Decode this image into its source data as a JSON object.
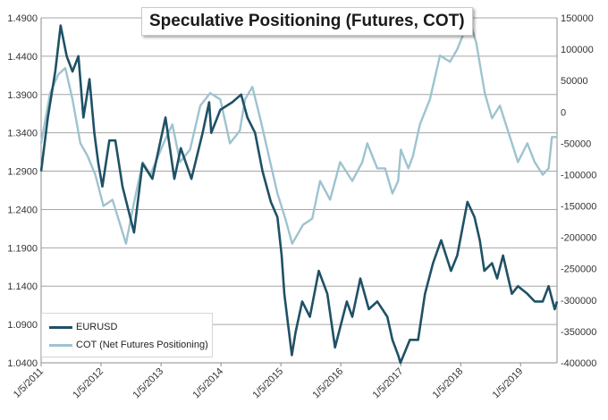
{
  "chart_data": {
    "type": "line",
    "title": "Speculative Positioning (Futures, COT)",
    "x_tick_labels": [
      "1/5/2011",
      "1/5/2012",
      "1/5/2013",
      "1/5/2014",
      "1/5/2015",
      "1/5/2016",
      "1/5/2017",
      "1/5/2018",
      "1/5/2019"
    ],
    "x_range": [
      "2011-01-05",
      "2019-08-15"
    ],
    "left_axis": {
      "ticks": [
        "1.4900",
        "1.4400",
        "1.3900",
        "1.3400",
        "1.2900",
        "1.2400",
        "1.1900",
        "1.1400",
        "1.0900",
        "1.0400"
      ],
      "ylim": [
        1.04,
        1.49
      ]
    },
    "right_axis": {
      "ticks": [
        "150000",
        "100000",
        "50000",
        "0",
        "-50000",
        "-100000",
        "-150000",
        "-200000",
        "-250000",
        "-300000",
        "-350000",
        "-400000"
      ],
      "ylim": [
        -400000,
        150000
      ]
    },
    "grid": "horizontal",
    "legend_position": "bottom-left",
    "colors": {
      "eurusd": "#1f5166",
      "cot": "#9ec3cf",
      "grid": "#a6a6a6"
    },
    "series": [
      {
        "name": "EURUSD",
        "axis": "left",
        "x": [
          "2011-01-05",
          "2011-02-15",
          "2011-04-01",
          "2011-05-04",
          "2011-06-10",
          "2011-07-15",
          "2011-08-20",
          "2011-09-20",
          "2011-10-27",
          "2011-11-25",
          "2011-12-20",
          "2012-01-13",
          "2012-02-25",
          "2012-04-01",
          "2012-05-15",
          "2012-07-24",
          "2012-09-14",
          "2012-11-13",
          "2013-02-01",
          "2013-03-27",
          "2013-05-05",
          "2013-07-09",
          "2013-09-15",
          "2013-10-25",
          "2013-11-07",
          "2014-01-01",
          "2014-03-15",
          "2014-05-08",
          "2014-06-15",
          "2014-08-01",
          "2014-09-15",
          "2014-11-05",
          "2014-12-15",
          "2015-01-10",
          "2015-01-26",
          "2015-03-13",
          "2015-04-05",
          "2015-05-15",
          "2015-07-01",
          "2015-08-24",
          "2015-10-15",
          "2015-12-01",
          "2016-02-11",
          "2016-03-15",
          "2016-05-03",
          "2016-06-24",
          "2016-08-15",
          "2016-10-15",
          "2016-11-15",
          "2016-12-20",
          "2017-01-03",
          "2017-03-01",
          "2017-04-20",
          "2017-06-01",
          "2017-07-20",
          "2017-09-08",
          "2017-11-07",
          "2017-12-15",
          "2018-02-15",
          "2018-03-30",
          "2018-05-01",
          "2018-05-29",
          "2018-07-15",
          "2018-08-15",
          "2018-09-20",
          "2018-11-13",
          "2018-12-20",
          "2019-02-15",
          "2019-04-01",
          "2019-05-20",
          "2019-06-25",
          "2019-08-01",
          "2019-08-15"
        ],
        "values": [
          1.29,
          1.36,
          1.42,
          1.48,
          1.44,
          1.42,
          1.44,
          1.36,
          1.41,
          1.34,
          1.3,
          1.27,
          1.33,
          1.33,
          1.27,
          1.21,
          1.3,
          1.28,
          1.36,
          1.28,
          1.32,
          1.28,
          1.34,
          1.38,
          1.34,
          1.37,
          1.38,
          1.39,
          1.36,
          1.34,
          1.29,
          1.25,
          1.23,
          1.18,
          1.13,
          1.05,
          1.08,
          1.12,
          1.1,
          1.16,
          1.13,
          1.06,
          1.12,
          1.1,
          1.15,
          1.11,
          1.12,
          1.1,
          1.07,
          1.05,
          1.04,
          1.07,
          1.07,
          1.13,
          1.17,
          1.2,
          1.16,
          1.18,
          1.25,
          1.23,
          1.2,
          1.16,
          1.17,
          1.15,
          1.18,
          1.13,
          1.14,
          1.13,
          1.12,
          1.12,
          1.14,
          1.11,
          1.12
        ]
      },
      {
        "name": "COT (Net Futures Positioning)",
        "axis": "right",
        "x": [
          "2011-01-05",
          "2011-03-01",
          "2011-04-20",
          "2011-06-01",
          "2011-07-15",
          "2011-09-01",
          "2011-10-15",
          "2011-12-01",
          "2012-01-20",
          "2012-03-15",
          "2012-05-01",
          "2012-06-05",
          "2012-07-20",
          "2012-09-15",
          "2012-11-01",
          "2013-01-20",
          "2013-03-15",
          "2013-05-01",
          "2013-07-01",
          "2013-09-01",
          "2013-10-31",
          "2014-01-01",
          "2014-03-01",
          "2014-04-30",
          "2014-06-01",
          "2014-07-15",
          "2014-09-01",
          "2014-11-01",
          "2014-12-15",
          "2015-02-01",
          "2015-03-15",
          "2015-05-20",
          "2015-07-15",
          "2015-09-01",
          "2015-11-01",
          "2016-01-01",
          "2016-03-15",
          "2016-05-15",
          "2016-06-15",
          "2016-08-15",
          "2016-10-01",
          "2016-11-15",
          "2016-12-20",
          "2017-01-05",
          "2017-02-20",
          "2017-03-20",
          "2017-05-01",
          "2017-07-01",
          "2017-09-01",
          "2017-11-01",
          "2017-12-15",
          "2018-01-30",
          "2018-03-01",
          "2018-04-10",
          "2018-06-01",
          "2018-07-15",
          "2018-09-01",
          "2018-11-01",
          "2018-12-20",
          "2019-02-15",
          "2019-04-01",
          "2019-05-20",
          "2019-06-25",
          "2019-07-15",
          "2019-08-15"
        ],
        "values": [
          -50000,
          30000,
          60000,
          70000,
          20000,
          -50000,
          -70000,
          -100000,
          -150000,
          -140000,
          -180000,
          -210000,
          -150000,
          -80000,
          -100000,
          -50000,
          -20000,
          -80000,
          -60000,
          10000,
          30000,
          20000,
          -50000,
          -30000,
          20000,
          40000,
          -10000,
          -80000,
          -130000,
          -170000,
          -210000,
          -180000,
          -170000,
          -110000,
          -140000,
          -80000,
          -110000,
          -80000,
          -50000,
          -90000,
          -90000,
          -130000,
          -110000,
          -60000,
          -90000,
          -70000,
          -20000,
          20000,
          90000,
          80000,
          100000,
          130000,
          145000,
          110000,
          30000,
          -10000,
          10000,
          -40000,
          -80000,
          -50000,
          -80000,
          -100000,
          -90000,
          -40000,
          -40000
        ]
      }
    ]
  }
}
